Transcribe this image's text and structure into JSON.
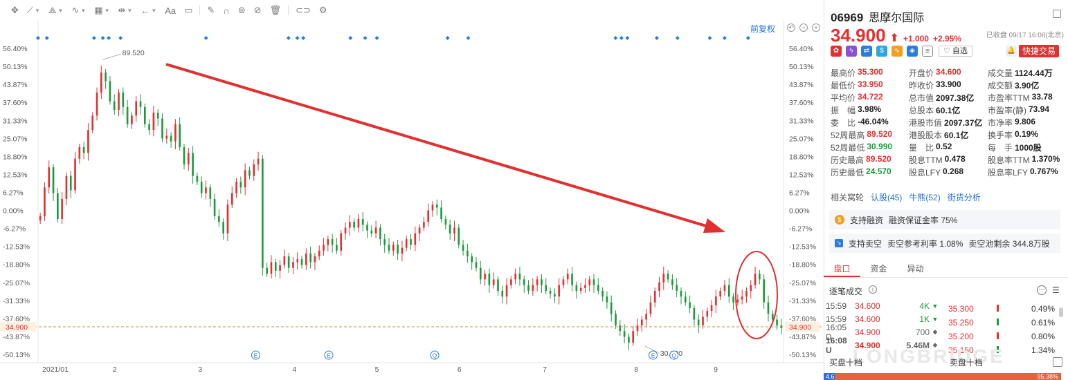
{
  "toolbar": {
    "items": [
      {
        "name": "move-tool-icon",
        "glyph": "✥",
        "chev": false
      },
      {
        "name": "line-tool-icon",
        "glyph": "⟋",
        "chev": true
      },
      {
        "name": "path-tool-icon",
        "glyph": "⟁",
        "chev": true
      },
      {
        "name": "wave-tool-icon",
        "glyph": "∿",
        "chev": true
      },
      {
        "name": "fib-tool-icon",
        "glyph": "▦",
        "chev": true
      },
      {
        "name": "range-tool-icon",
        "glyph": "⇹",
        "chev": true
      },
      {
        "name": "arrow-tool-icon",
        "glyph": "←",
        "chev": true
      },
      {
        "name": "text-tool-icon",
        "glyph": "Aa",
        "chev": false
      },
      {
        "name": "comment-tool-icon",
        "glyph": "▭",
        "chev": false
      },
      {
        "name": "pen-tool-icon",
        "glyph": "✎",
        "chev": false
      },
      {
        "name": "magnet-tool-icon",
        "glyph": "∩",
        "chev": false
      },
      {
        "name": "lock-tool-icon",
        "glyph": "⊜",
        "chev": false
      },
      {
        "name": "hide-tool-icon",
        "glyph": "⊘",
        "chev": false
      },
      {
        "name": "delete-tool-icon",
        "glyph": "🗑",
        "chev": false
      },
      {
        "name": "link-tool-icon",
        "glyph": "⊂⊃",
        "chev": false
      },
      {
        "name": "settings-gear-icon",
        "glyph": "⚙",
        "chev": false
      }
    ]
  },
  "chart": {
    "restore_label": "前复权",
    "undo_glyph": "↶",
    "minus_glyph": "−",
    "plus_glyph": "+"
  },
  "chart_data": {
    "type": "candlestick",
    "title": "",
    "y_tick_labels": [
      "56.40%",
      "50.13%",
      "43.87%",
      "37.60%",
      "31.33%",
      "25.07%",
      "18.80%",
      "12.53%",
      "6.27%",
      "0.00%",
      "-6.27%",
      "-12.53%",
      "-18.80%",
      "-25.07%",
      "-31.33%",
      "-37.60%",
      "-43.87%",
      "-50.13%"
    ],
    "y_ticks": [
      56.4,
      50.13,
      43.87,
      37.6,
      31.33,
      25.07,
      18.8,
      12.53,
      6.27,
      0.0,
      -6.27,
      -12.53,
      -18.8,
      -25.07,
      -31.33,
      -37.6,
      -43.87,
      -50.13
    ],
    "x_tick_labels": [
      "2021/01",
      "2",
      "3",
      "4",
      "5",
      "6",
      "7",
      "8",
      "9"
    ],
    "x_ticks": [
      0,
      26,
      55,
      87,
      115,
      143,
      172,
      203,
      230
    ],
    "x_range": [
      0,
      253
    ],
    "current_price_label": "34.900",
    "current_price_pct": -40.5,
    "max_label": "89.520",
    "max_at": 22,
    "max_pct": 52.5,
    "min_label": "30.990",
    "min_at": 206,
    "min_pct": -47.2,
    "closes_pct": [
      -2,
      8,
      15,
      6,
      -3,
      4,
      12,
      7,
      18,
      22,
      20,
      28,
      33,
      41,
      48,
      45,
      38,
      35,
      41,
      36,
      30,
      33,
      38,
      36,
      30,
      28,
      34,
      32,
      25,
      26,
      24,
      30,
      22,
      16,
      20,
      12,
      10,
      6,
      8,
      4,
      -2,
      -4,
      -8,
      2,
      6,
      10,
      8,
      14,
      12,
      16,
      18,
      -20,
      -22,
      -18,
      -21,
      -19,
      -16,
      -20,
      -18,
      -17,
      -19,
      -15,
      -18,
      -16,
      -14,
      -12,
      -10,
      -12,
      -14,
      -8,
      -6,
      -4,
      -6,
      -3,
      -5,
      -7,
      -8,
      -6,
      -10,
      -12,
      -14,
      -12,
      -15,
      -13,
      -10,
      -12,
      -8,
      -6,
      -4,
      0,
      2,
      1,
      -3,
      -5,
      -8,
      -6,
      -12,
      -14,
      -16,
      -18,
      -20,
      -24,
      -22,
      -26,
      -24,
      -28,
      -30,
      -26,
      -24,
      -22,
      -24,
      -26,
      -28,
      -26,
      -24,
      -26,
      -28,
      -29,
      -30,
      -26,
      -24,
      -22,
      -26,
      -28,
      -27,
      -26,
      -24,
      -26,
      -28,
      -30,
      -32,
      -36,
      -40,
      -42,
      -44,
      -46,
      -42,
      -40,
      -38,
      -36,
      -32,
      -28,
      -25,
      -22,
      -24,
      -26,
      -28,
      -30,
      -32,
      -34,
      -38,
      -40,
      -37,
      -35,
      -33,
      -30,
      -28,
      -26,
      -30,
      -32,
      -31,
      -30,
      -28,
      -26,
      -22,
      -24,
      -32,
      -36,
      -38,
      -40,
      -41
    ],
    "markers_E": [
      0.292,
      0.39,
      0.825
    ],
    "markers_Q": [
      0.532,
      0.853
    ]
  },
  "annotation": {
    "color": "#e0302f"
  },
  "quote": {
    "code": "06969",
    "name": "思摩尔国际",
    "price": "34.900",
    "arrow": "⬆",
    "change": "+1.000",
    "change_pct": "+2.95%",
    "status": "已收盘 09/17 16:08(北京)",
    "watch_label": "♡ 自选",
    "trade_label": "快捷交易",
    "bell_glyph": "🔔"
  },
  "stats": [
    [
      {
        "k": "最高价",
        "v": "35.300",
        "c": "red"
      },
      {
        "k": "开盘价",
        "v": "34.600",
        "c": "red"
      },
      {
        "k": "成交量",
        "v": "1124.44万",
        "c": ""
      }
    ],
    [
      {
        "k": "最低价",
        "v": "33.950",
        "c": "red"
      },
      {
        "k": "昨收价",
        "v": "33.900",
        "c": ""
      },
      {
        "k": "成交额",
        "v": "3.90亿",
        "c": ""
      }
    ],
    [
      {
        "k": "平均价",
        "v": "34.722",
        "c": "red"
      },
      {
        "k": "总市值",
        "v": "2097.38亿",
        "c": ""
      },
      {
        "k": "市盈率TTM",
        "v": "33.78",
        "c": ""
      }
    ],
    [
      {
        "k": "振　幅",
        "v": "3.98%",
        "c": ""
      },
      {
        "k": "总股本",
        "v": "60.1亿",
        "c": ""
      },
      {
        "k": "市盈率(静)",
        "v": "73.94",
        "c": ""
      }
    ],
    [
      {
        "k": "委　比",
        "v": "-46.04%",
        "c": ""
      },
      {
        "k": "港股市值",
        "v": "2097.37亿",
        "c": ""
      },
      {
        "k": "市净率",
        "v": "9.806",
        "c": ""
      }
    ],
    [
      {
        "k": "52周最高",
        "v": "89.520",
        "c": "red"
      },
      {
        "k": "港股股本",
        "v": "60.1亿",
        "c": ""
      },
      {
        "k": "换手率",
        "v": "0.19%",
        "c": ""
      }
    ],
    [
      {
        "k": "52周最低",
        "v": "30.990",
        "c": "green"
      },
      {
        "k": "量　比",
        "v": "0.52",
        "c": ""
      },
      {
        "k": "每　手",
        "v": "1000股",
        "c": ""
      }
    ],
    [
      {
        "k": "历史最高",
        "v": "89.520",
        "c": "red"
      },
      {
        "k": "股息TTM",
        "v": "0.478",
        "c": ""
      },
      {
        "k": "股息率TTM",
        "v": "1.370%",
        "c": ""
      }
    ],
    [
      {
        "k": "历史最低",
        "v": "24.570",
        "c": "green"
      },
      {
        "k": "股息LFY",
        "v": "0.268",
        "c": ""
      },
      {
        "k": "股息率LFY",
        "v": "0.767%",
        "c": ""
      }
    ]
  ],
  "related": {
    "label": "相关窝轮",
    "bull": "认股(45)",
    "bear": "牛熊(52)",
    "analysis": "街货分析"
  },
  "margin": {
    "text1": "支持融资",
    "text2": "融资保证金率 75%",
    "icon": "$"
  },
  "short": {
    "text1": "支持卖空",
    "text2": "卖空参考利率 1.08%",
    "text3": "卖空池剩余 344.8万股"
  },
  "tabs": [
    "盘口",
    "资金",
    "异动"
  ],
  "ticks_title": "逐笔成交",
  "ticks": [
    {
      "time": "15:59",
      "price": "34.600",
      "vol": "4K",
      "ar": "▼",
      "vc": "green"
    },
    {
      "time": "15:59",
      "price": "34.600",
      "vol": "1K",
      "ar": "▼",
      "vc": "green"
    },
    {
      "time": "16:05 D",
      "price": "34.900",
      "vol": "700",
      "ar": "◆",
      "vc": "grey"
    },
    {
      "time": "16:08 U",
      "price": "34.900",
      "vol": "5.46M",
      "ar": "◆",
      "vc": "grey"
    }
  ],
  "book": [
    {
      "price": "35.300",
      "pct": "0.49%",
      "bar": "#e0302f"
    },
    {
      "price": "35.250",
      "pct": "0.61%",
      "bar": "#1a9a3c"
    },
    {
      "price": "35.200",
      "pct": "0.80%",
      "bar": "#e0302f"
    },
    {
      "price": "35.150",
      "pct": "1.34%",
      "bar": "#1a9a3c"
    }
  ],
  "depth": {
    "buy_label": "买盘十档",
    "sell_label": "卖盘十档",
    "buy_pct": "4.62%",
    "sell_pct": "95.38%"
  },
  "watermark": "LONGBRIDGE"
}
